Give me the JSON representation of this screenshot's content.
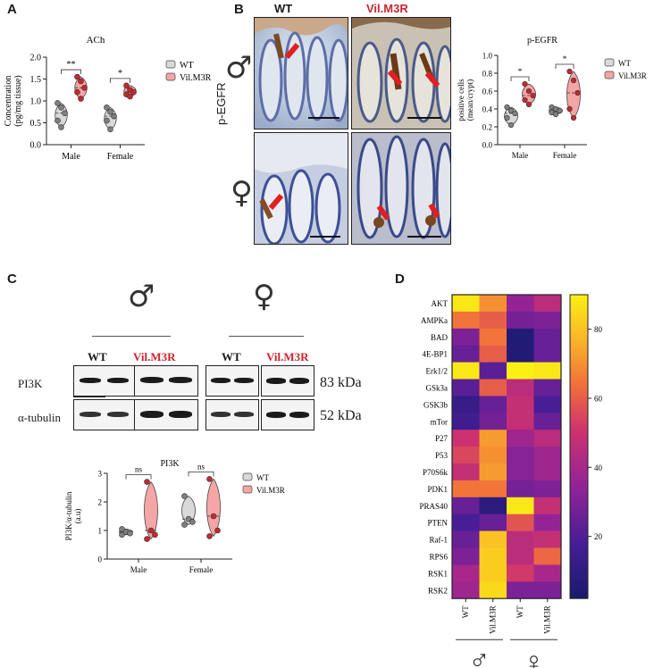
{
  "colors": {
    "wt": "#d9d9d9",
    "vil": "#f4a6a6",
    "vil_dot": "#c8272f",
    "wt_dot": "#808080",
    "red_label": "#c8272f"
  },
  "panel_A": {
    "letter": "A",
    "chart_data": {
      "type": "violin",
      "title": "ACh",
      "ylabel": "Concentration (pg/mg tissue)",
      "ylabel_line1": "Concentration",
      "ylabel_line2": "(pg/mg tissue)",
      "ylim": [
        0,
        2.0
      ],
      "yticks": [
        "0.0",
        "0.5",
        "1.0",
        "1.5",
        "2.0"
      ],
      "categories": [
        "Male",
        "Female"
      ],
      "legend": [
        "WT",
        "Vil.M3R"
      ],
      "significance": [
        "**",
        "*"
      ],
      "series": [
        {
          "name": "WT",
          "points": [
            [
              0.95,
              0.85,
              0.72,
              0.55,
              0.4
            ],
            [
              0.85,
              0.75,
              0.65,
              0.55,
              0.35
            ]
          ]
        },
        {
          "name": "Vil.M3R",
          "points": [
            [
              1.55,
              1.45,
              1.3,
              1.2,
              1.05
            ],
            [
              1.35,
              1.25,
              1.2,
              1.15,
              1.1
            ]
          ]
        }
      ]
    }
  },
  "panel_B": {
    "letter": "B",
    "col_wt": "WT",
    "col_vil": "Vil.M3R",
    "row_label": "p-EGFR",
    "male_symbol": "♂",
    "female_symbol": "♀",
    "chart_data": {
      "type": "violin",
      "title": "p-EGFR",
      "ylabel": "positive cells (mean/crypt)",
      "ylabel_line1": "positive cells",
      "ylabel_line2": "(mean/crypt)",
      "ylim": [
        0,
        1.0
      ],
      "yticks": [
        "0.0",
        "0.2",
        "0.4",
        "0.6",
        "0.8",
        "1.0"
      ],
      "categories": [
        "Male",
        "Female"
      ],
      "legend": [
        "WT",
        "Vil.M3R"
      ],
      "significance": [
        "*",
        "*"
      ],
      "series": [
        {
          "name": "WT",
          "points": [
            [
              0.42,
              0.38,
              0.35,
              0.3,
              0.22
            ],
            [
              0.42,
              0.4,
              0.38,
              0.36,
              0.34
            ]
          ]
        },
        {
          "name": "Vil.M3R",
          "points": [
            [
              0.68,
              0.6,
              0.55,
              0.5,
              0.45
            ],
            [
              0.82,
              0.72,
              0.58,
              0.4,
              0.3
            ]
          ]
        }
      ]
    }
  },
  "panel_C": {
    "letter": "C",
    "male_symbol": "♂",
    "female_symbol": "♀",
    "wt_label": "WT",
    "vil_label": "Vil.M3R",
    "row1_label": "PI3K",
    "row2_label": "α-tubulin",
    "kda1": "83 kDa",
    "kda2": "52 kDa",
    "chart_data": {
      "type": "violin",
      "title": "PI3K",
      "ylabel": "PI3K/α-tubulin (a.u)",
      "ylabel_line1": "PI3K/α-tubulin",
      "ylabel_line2": "(a.u)",
      "ylim": [
        0,
        3
      ],
      "yticks": [
        "0",
        "1",
        "2",
        "3"
      ],
      "categories": [
        "Male",
        "Female"
      ],
      "legend": [
        "WT",
        "Vil.M3R"
      ],
      "significance": [
        "ns",
        "ns"
      ],
      "series": [
        {
          "name": "WT",
          "points": [
            [
              1.05,
              0.95,
              0.9,
              0.85
            ],
            [
              2.2,
              1.4,
              1.3,
              1.2
            ]
          ]
        },
        {
          "name": "Vil.M3R",
          "points": [
            [
              2.7,
              1.0,
              0.85,
              0.7
            ],
            [
              2.8,
              1.5,
              1.0,
              0.8
            ]
          ]
        }
      ]
    }
  },
  "panel_D": {
    "letter": "D",
    "male_symbol": "♂",
    "female_symbol": "♀",
    "chart_data": {
      "type": "heatmap",
      "rows": [
        "AKT",
        "AMPKa",
        "BAD",
        "4E-BP1",
        "Erk1/2",
        "GSk3a",
        "GSK3b",
        "mTor",
        "P27",
        "P53",
        "P70S6k",
        "PDK1",
        "PRAS40",
        "PTEN",
        "Raf-1",
        "RPS6",
        "RSK1",
        "RSK2"
      ],
      "columns": [
        "WT",
        "Vil.M3R",
        "WT",
        "Vil.M3R"
      ],
      "colorbar_ticks": [
        "80",
        "60",
        "40",
        "20"
      ],
      "colorbar_range": [
        2,
        90
      ],
      "values": [
        [
          88,
          70,
          35,
          45
        ],
        [
          65,
          60,
          28,
          30
        ],
        [
          30,
          65,
          5,
          25
        ],
        [
          25,
          60,
          5,
          25
        ],
        [
          88,
          22,
          90,
          88
        ],
        [
          22,
          60,
          45,
          25
        ],
        [
          12,
          25,
          48,
          18
        ],
        [
          15,
          28,
          48,
          25
        ],
        [
          50,
          72,
          38,
          45
        ],
        [
          55,
          70,
          32,
          38
        ],
        [
          48,
          72,
          32,
          38
        ],
        [
          65,
          65,
          28,
          30
        ],
        [
          25,
          8,
          88,
          48
        ],
        [
          18,
          25,
          58,
          35
        ],
        [
          25,
          80,
          45,
          48
        ],
        [
          30,
          82,
          45,
          62
        ],
        [
          40,
          82,
          52,
          40
        ],
        [
          38,
          85,
          30,
          30
        ]
      ]
    }
  }
}
